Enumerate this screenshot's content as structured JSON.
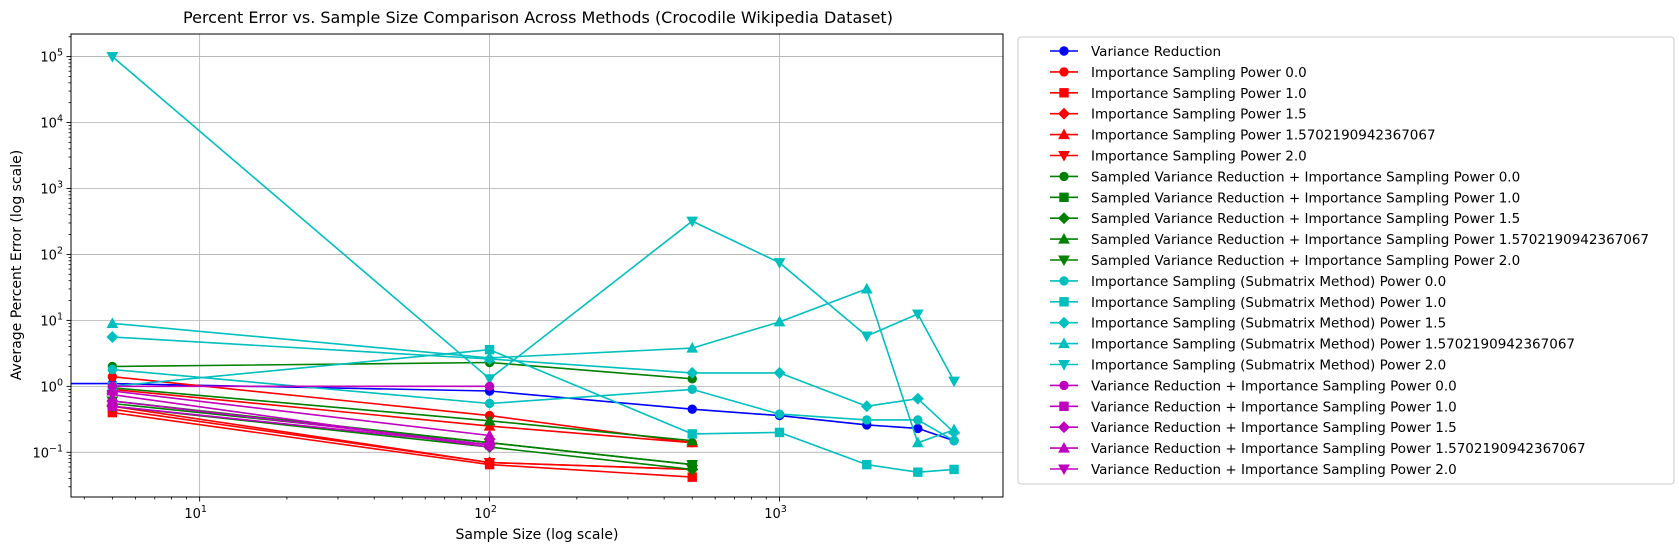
{
  "chart_data": {
    "type": "line",
    "title": "Percent Error vs. Sample Size Comparison Across Methods (Crocodile Wikipedia Dataset)",
    "xlabel": "Sample Size (log scale)",
    "ylabel": "Average Percent Error (log scale)",
    "xscale": "log",
    "yscale": "log",
    "xlim": [
      3.6,
      5900
    ],
    "ylim": [
      0.021,
      220000
    ],
    "grid": true,
    "legend_position": "outside right",
    "x_ticks": [
      {
        "value": 10,
        "label": "10",
        "exp": "1"
      },
      {
        "value": 100,
        "label": "10",
        "exp": "2"
      },
      {
        "value": 1000,
        "label": "10",
        "exp": "3"
      }
    ],
    "y_ticks": [
      {
        "value": 0.1,
        "label": "10",
        "exp": "−1"
      },
      {
        "value": 1,
        "label": "10",
        "exp": "0"
      },
      {
        "value": 10,
        "label": "10",
        "exp": "1"
      },
      {
        "value": 100,
        "label": "10",
        "exp": "2"
      },
      {
        "value": 1000,
        "label": "10",
        "exp": "3"
      },
      {
        "value": 10000,
        "label": "10",
        "exp": "4"
      },
      {
        "value": 100000,
        "label": "10",
        "exp": "5"
      }
    ],
    "series": [
      {
        "name": "Variance Reduction",
        "color": "#0000ff",
        "marker": "circle",
        "x": [
          3.6,
          5,
          100,
          500,
          1000,
          2000,
          3000,
          4000
        ],
        "y": [
          1.1,
          1.1,
          0.85,
          0.45,
          0.36,
          0.26,
          0.23,
          0.15
        ]
      },
      {
        "name": "Importance Sampling Power 0.0",
        "color": "#ff0000",
        "marker": "circle",
        "x": [
          5,
          100,
          500
        ],
        "y": [
          1.4,
          0.36,
          0.14
        ]
      },
      {
        "name": "Importance Sampling Power 1.0",
        "color": "#ff0000",
        "marker": "square",
        "x": [
          5,
          100,
          500
        ],
        "y": [
          0.4,
          0.065,
          0.042
        ]
      },
      {
        "name": "Importance Sampling Power 1.5",
        "color": "#ff0000",
        "marker": "diamond",
        "x": [
          5,
          100,
          500
        ],
        "y": [
          0.5,
          0.07,
          0.055
        ]
      },
      {
        "name": "Importance Sampling Power 1.5702190942367067",
        "color": "#ff0000",
        "marker": "triangle-up",
        "x": [
          5,
          100,
          500
        ],
        "y": [
          0.9,
          0.25,
          0.14
        ]
      },
      {
        "name": "Importance Sampling Power 2.0",
        "color": "#ff0000",
        "marker": "triangle-down",
        "x": [
          5,
          100,
          500
        ],
        "y": [
          0.45,
          0.07,
          0.055
        ]
      },
      {
        "name": "Sampled Variance Reduction + Importance Sampling Power 0.0",
        "color": "#008000",
        "marker": "circle",
        "x": [
          5,
          100,
          500
        ],
        "y": [
          2.0,
          2.3,
          1.3
        ]
      },
      {
        "name": "Sampled Variance Reduction + Importance Sampling Power 1.0",
        "color": "#008000",
        "marker": "square",
        "x": [
          5,
          100,
          500
        ],
        "y": [
          0.55,
          0.14,
          0.065
        ]
      },
      {
        "name": "Sampled Variance Reduction + Importance Sampling Power 1.5",
        "color": "#008000",
        "marker": "diamond",
        "x": [
          5,
          100,
          500
        ],
        "y": [
          0.5,
          0.12,
          0.055
        ]
      },
      {
        "name": "Sampled Variance Reduction + Importance Sampling Power 1.5702190942367067",
        "color": "#008000",
        "marker": "triangle-up",
        "x": [
          5,
          100,
          500
        ],
        "y": [
          0.95,
          0.3,
          0.15
        ]
      },
      {
        "name": "Sampled Variance Reduction + Importance Sampling Power 2.0",
        "color": "#008000",
        "marker": "triangle-down",
        "x": [
          5,
          100,
          500
        ],
        "y": [
          0.6,
          0.14,
          0.065
        ]
      },
      {
        "name": "Importance Sampling (Submatrix Method) Power 0.0",
        "color": "#00bfbf",
        "marker": "circle",
        "x": [
          5,
          100,
          500,
          1000,
          2000,
          3000,
          4000
        ],
        "y": [
          1.8,
          0.55,
          0.9,
          0.38,
          0.31,
          0.31,
          0.15
        ]
      },
      {
        "name": "Importance Sampling (Submatrix Method) Power 1.0",
        "color": "#00bfbf",
        "marker": "square",
        "x": [
          5,
          100,
          500,
          1000,
          2000,
          3000,
          4000
        ],
        "y": [
          1.0,
          3.6,
          0.19,
          0.2,
          0.065,
          0.05,
          0.055
        ]
      },
      {
        "name": "Importance Sampling (Submatrix Method) Power 1.5",
        "color": "#00bfbf",
        "marker": "diamond",
        "x": [
          5,
          100,
          500,
          1000,
          2000,
          3000,
          4000
        ],
        "y": [
          5.6,
          2.6,
          1.6,
          1.6,
          0.5,
          0.65,
          0.2
        ]
      },
      {
        "name": "Importance Sampling (Submatrix Method) Power 1.5702190942367067",
        "color": "#00bfbf",
        "marker": "triangle-up",
        "x": [
          5,
          100,
          500,
          1000,
          2000,
          3000,
          4000
        ],
        "y": [
          9.0,
          2.7,
          3.8,
          9.5,
          30,
          0.14,
          0.22
        ]
      },
      {
        "name": "Importance Sampling (Submatrix Method) Power 2.0",
        "color": "#00bfbf",
        "marker": "triangle-down",
        "x": [
          5,
          100,
          500,
          1000,
          2000,
          3000,
          4000
        ],
        "y": [
          100000,
          1.3,
          320,
          75,
          5.8,
          12.5,
          1.2
        ]
      },
      {
        "name": "Variance Reduction + Importance Sampling Power 0.0",
        "color": "#bf00bf",
        "marker": "circle",
        "x": [
          5,
          100
        ],
        "y": [
          1.0,
          1.0
        ]
      },
      {
        "name": "Variance Reduction + Importance Sampling Power 1.0",
        "color": "#bf00bf",
        "marker": "square",
        "x": [
          5,
          100
        ],
        "y": [
          0.5,
          0.13
        ]
      },
      {
        "name": "Variance Reduction + Importance Sampling Power 1.5",
        "color": "#bf00bf",
        "marker": "diamond",
        "x": [
          5,
          100
        ],
        "y": [
          0.6,
          0.13
        ]
      },
      {
        "name": "Variance Reduction + Importance Sampling Power 1.5702190942367067",
        "color": "#bf00bf",
        "marker": "triangle-up",
        "x": [
          5,
          100
        ],
        "y": [
          0.85,
          0.18
        ]
      },
      {
        "name": "Variance Reduction + Importance Sampling Power 2.0",
        "color": "#bf00bf",
        "marker": "triangle-down",
        "x": [
          5,
          100
        ],
        "y": [
          0.75,
          0.12
        ]
      }
    ]
  }
}
